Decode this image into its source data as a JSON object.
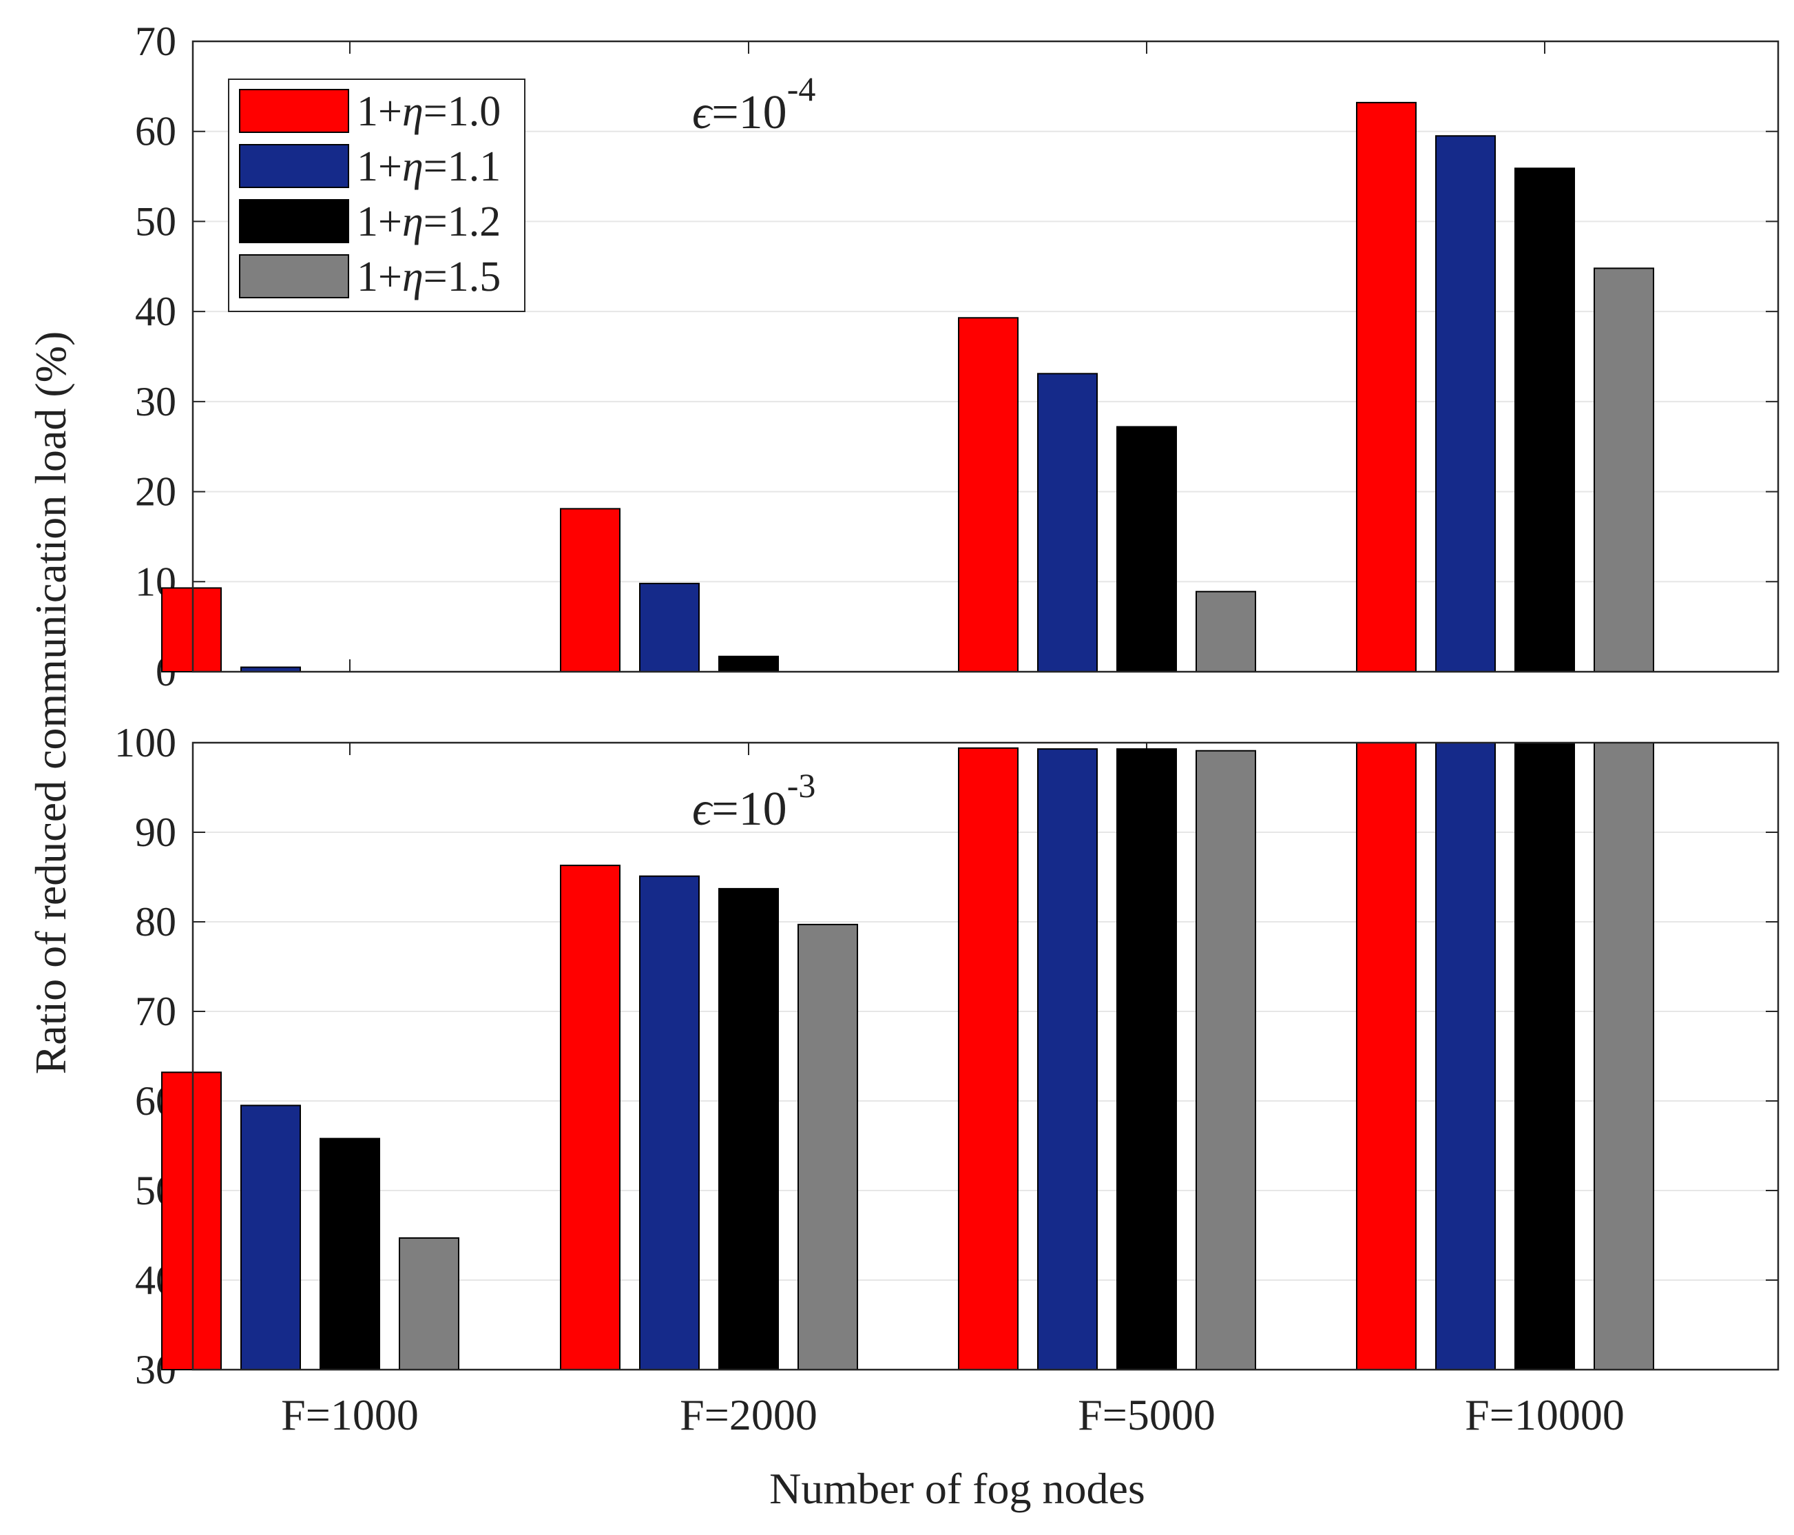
{
  "chart_data": [
    {
      "type": "bar",
      "panel": "top",
      "annotation": {
        "symbol": "ϵ",
        "eq": "=10",
        "exponent": "-4"
      },
      "categories": [
        "F=1000",
        "F=2000",
        "F=5000",
        "F=10000"
      ],
      "series": [
        {
          "name": "1+η=1.0",
          "values": [
            9.3,
            18.1,
            39.3,
            63.2
          ]
        },
        {
          "name": "1+η=1.1",
          "values": [
            0.5,
            9.8,
            33.1,
            59.5
          ]
        },
        {
          "name": "1+η=1.2",
          "values": [
            0.0,
            1.7,
            27.2,
            55.9
          ]
        },
        {
          "name": "1+η=1.5",
          "values": [
            0.0,
            0.0,
            8.9,
            44.8
          ]
        }
      ],
      "ylim": [
        0,
        70
      ],
      "yticks": [
        0,
        10,
        20,
        30,
        40,
        50,
        60,
        70
      ],
      "grid": true,
      "legend_position": "top-left"
    },
    {
      "type": "bar",
      "panel": "bottom",
      "annotation": {
        "symbol": "ϵ",
        "eq": "=10",
        "exponent": "-3"
      },
      "categories": [
        "F=1000",
        "F=2000",
        "F=5000",
        "F=10000"
      ],
      "series": [
        {
          "name": "1+η=1.0",
          "values": [
            63.2,
            86.3,
            99.4,
            100.0
          ]
        },
        {
          "name": "1+η=1.1",
          "values": [
            59.5,
            85.1,
            99.3,
            100.0
          ]
        },
        {
          "name": "1+η=1.2",
          "values": [
            55.8,
            83.7,
            99.3,
            100.0
          ]
        },
        {
          "name": "1+η=1.5",
          "values": [
            44.7,
            79.7,
            99.1,
            100.0
          ]
        }
      ],
      "ylim": [
        30,
        100
      ],
      "yticks": [
        30,
        40,
        50,
        60,
        70,
        80,
        90,
        100
      ],
      "grid": true
    }
  ],
  "legend": {
    "entries": [
      {
        "prefix": "1+",
        "symbol": "η",
        "suffix": "=1.0"
      },
      {
        "prefix": "1+",
        "symbol": "η",
        "suffix": "=1.1"
      },
      {
        "prefix": "1+",
        "symbol": "η",
        "suffix": "=1.2"
      },
      {
        "prefix": "1+",
        "symbol": "η",
        "suffix": "=1.5"
      }
    ]
  },
  "ylabel": "Ratio of reduced communication load (%)",
  "xlabel": "Number of fog nodes",
  "colors": [
    "#ff0000",
    "#152a8a",
    "#000000",
    "#7f7f7f"
  ]
}
